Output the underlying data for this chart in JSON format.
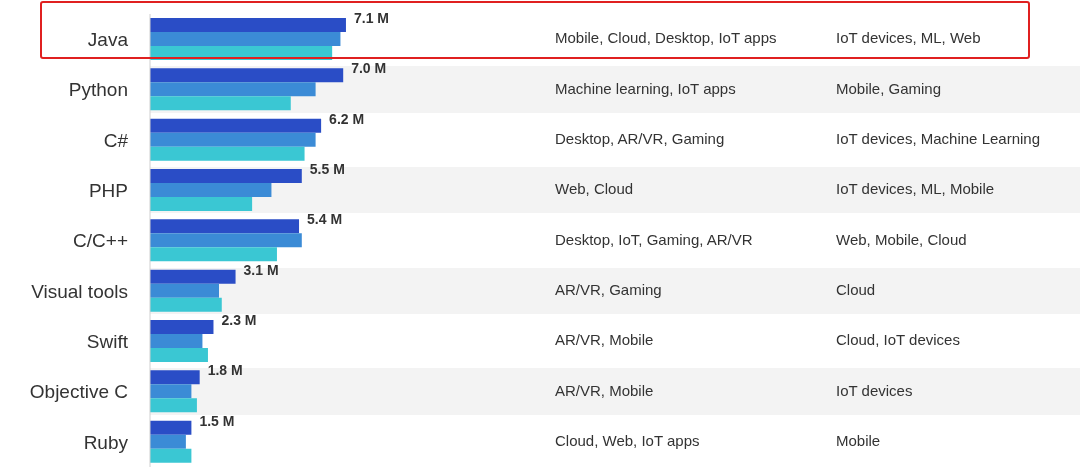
{
  "chart_data": {
    "type": "bar",
    "orientation": "horizontal",
    "categories": [
      "Java",
      "Python",
      "C#",
      "PHP",
      "C/C++",
      "Visual tools",
      "Swift",
      "Objective C",
      "Ruby"
    ],
    "series": [
      {
        "color": "#2a4dc6",
        "values": [
          7.1,
          7.0,
          6.2,
          5.5,
          5.4,
          3.1,
          2.3,
          1.8,
          1.5
        ],
        "value_labels": [
          "7.1 M",
          "7.0 M",
          "6.2 M",
          "5.5 M",
          "5.4 M",
          "3.1 M",
          "2.3 M",
          "1.8 M",
          "1.5 M"
        ]
      },
      {
        "color": "#3b8bd6",
        "values": [
          6.9,
          6.0,
          6.0,
          4.4,
          5.5,
          2.5,
          1.9,
          1.5,
          1.3
        ]
      },
      {
        "color": "#3ac7d3",
        "values": [
          6.6,
          5.1,
          5.6,
          3.7,
          4.6,
          2.6,
          2.1,
          1.7,
          1.5
        ]
      }
    ],
    "annotations": [
      "Mobile, Cloud, Desktop, IoT apps",
      "IoT devices, ML, Web",
      "Machine learning, IoT apps",
      "Mobile, Gaming",
      "Desktop, AR/VR, Gaming",
      "IoT devices, Machine Learning",
      "Web, Cloud",
      "IoT devices, ML, Mobile",
      "Desktop, IoT, Gaming, AR/VR",
      "Web, Mobile, Cloud",
      "AR/VR, Gaming",
      "Cloud",
      "AR/VR, Mobile",
      "Cloud, IoT devices",
      "AR/VR, Mobile",
      "IoT devices",
      "Cloud, Web, IoT apps",
      "Mobile"
    ]
  }
}
